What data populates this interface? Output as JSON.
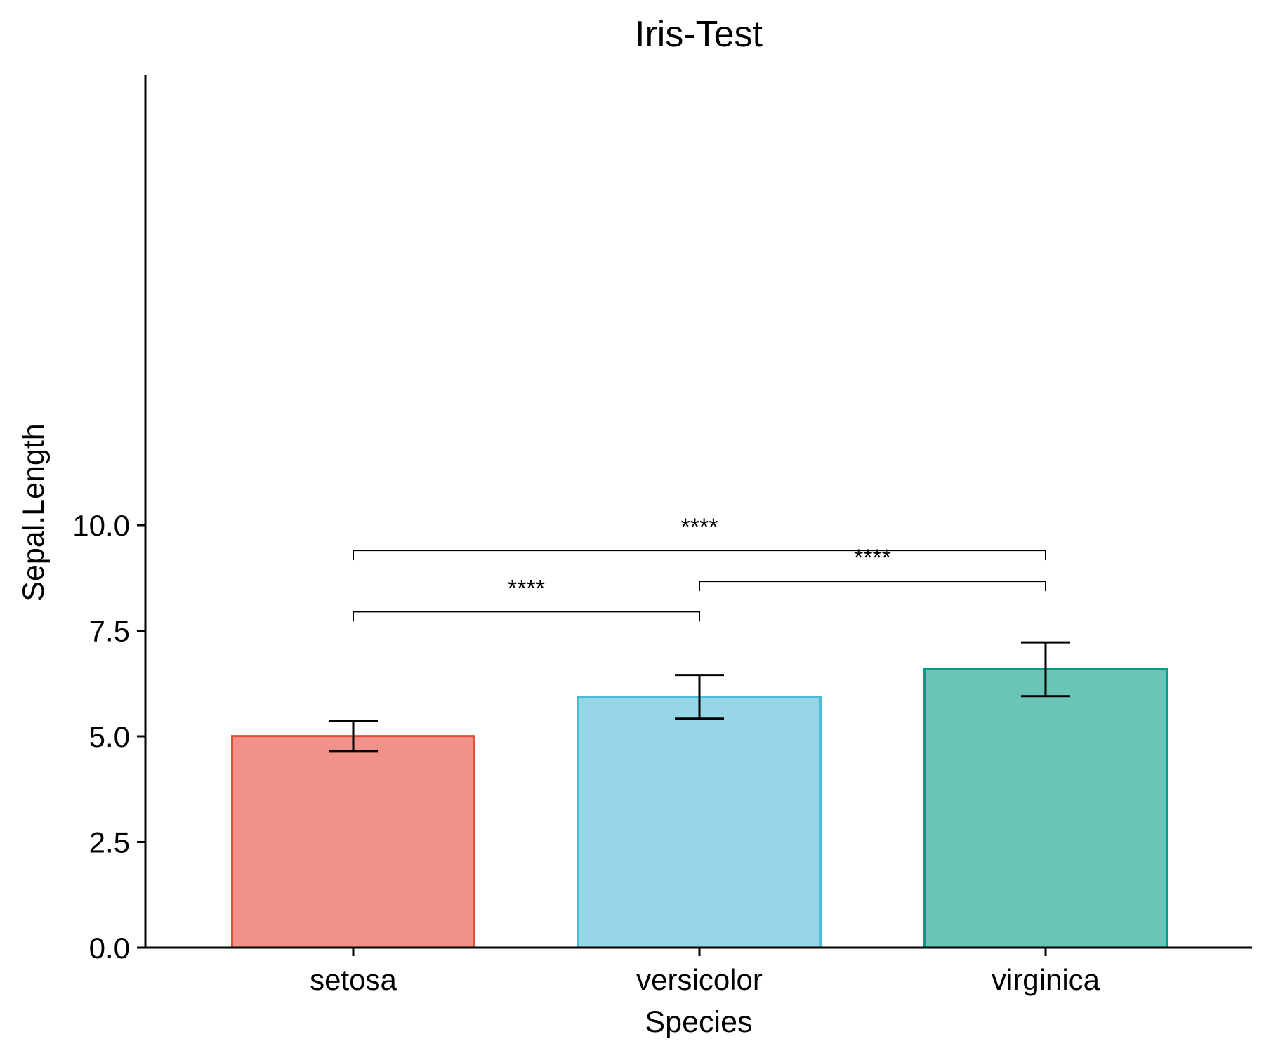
{
  "chart_data": {
    "type": "bar",
    "title": "Iris-Test",
    "xlabel": "Species",
    "ylabel": "Sepal.Length",
    "categories": [
      "setosa",
      "versicolor",
      "virginica"
    ],
    "values": [
      5.006,
      5.936,
      6.588
    ],
    "error_bars": [
      {
        "low": 4.654,
        "high": 5.358
      },
      {
        "low": 5.42,
        "high": 6.452
      },
      {
        "low": 5.952,
        "high": 7.224
      }
    ],
    "ylim": [
      0,
      10.3
    ],
    "yticks": [
      0,
      2.5,
      5,
      7.5,
      10
    ],
    "ytick_labels": [
      "0.0",
      "2.5",
      "5.0",
      "7.5",
      "10.0"
    ],
    "grid": false,
    "legend": "none",
    "colors": {
      "fill": [
        "#F0928A",
        "#97D6E6",
        "#69C6B7"
      ],
      "border": [
        "#E64B35",
        "#4DBBD5",
        "#00A087"
      ],
      "axis": "#000000"
    },
    "comparisons": [
      {
        "from": "setosa",
        "to": "versicolor",
        "y": 7.95,
        "label": "****"
      },
      {
        "from": "versicolor",
        "to": "virginica",
        "y": 8.67,
        "label": "****"
      },
      {
        "from": "setosa",
        "to": "virginica",
        "y": 9.4,
        "label": "****"
      }
    ]
  }
}
